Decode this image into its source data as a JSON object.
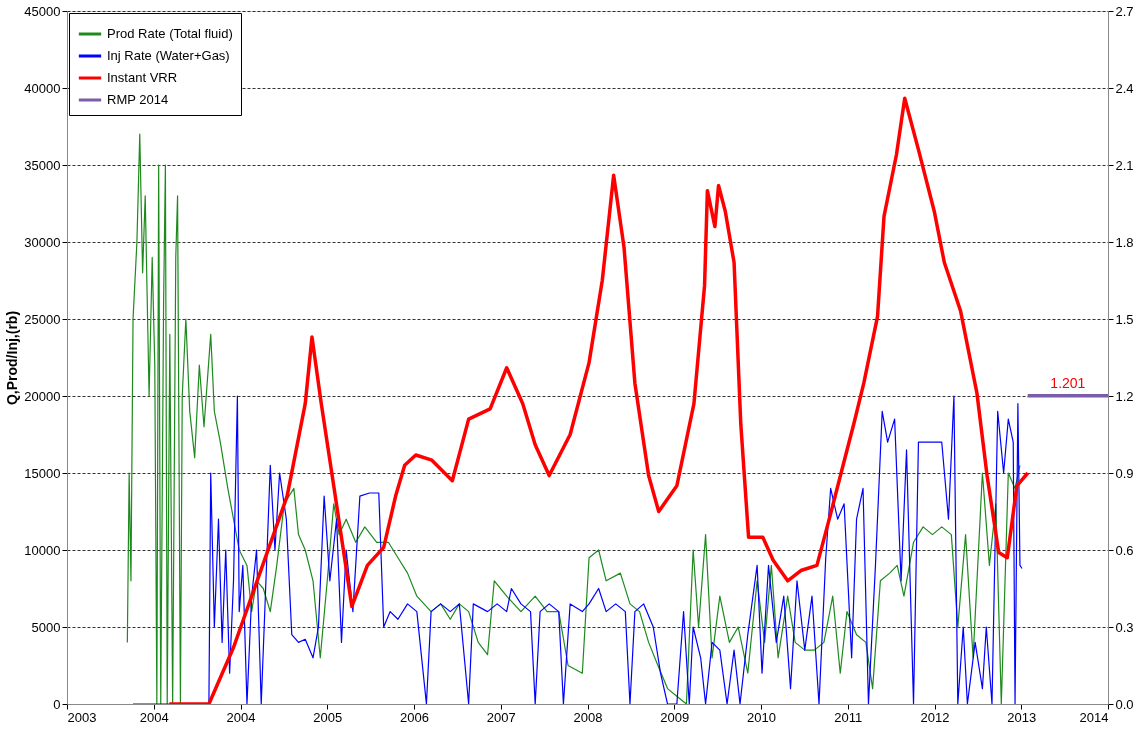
{
  "chart_data": {
    "type": "line",
    "ylabel": "Q,Prod/Inj,(rb)",
    "legend": "top left",
    "grid": "y",
    "marker": "none",
    "line_style": "solid",
    "xlim": [
      "2003-02-06",
      "2014-02-08"
    ],
    "xticks": [
      {
        "value": "2003-02-06",
        "label": "2003"
      },
      {
        "value": "2004-01-07",
        "label": "2004"
      },
      {
        "value": "2004-12-07",
        "label": "2004"
      },
      {
        "value": "2005-11-07",
        "label": "2005"
      },
      {
        "value": "2006-10-08",
        "label": "2006"
      },
      {
        "value": "2007-09-08",
        "label": "2007"
      },
      {
        "value": "2008-08-08",
        "label": "2008"
      },
      {
        "value": "2009-07-09",
        "label": "2009"
      },
      {
        "value": "2010-06-09",
        "label": "2010"
      },
      {
        "value": "2011-05-10",
        "label": "2011"
      },
      {
        "value": "2012-04-09",
        "label": "2012"
      },
      {
        "value": "2013-03-10",
        "label": "2013"
      },
      {
        "value": "2014-02-08",
        "label": "2014"
      }
    ],
    "ylim": [
      0,
      45000
    ],
    "yticks": [
      0,
      5000,
      10000,
      15000,
      20000,
      25000,
      30000,
      35000,
      40000,
      45000
    ],
    "y2lim": [
      0,
      2.7
    ],
    "y2ticks": [
      {
        "value": 0,
        "label": "0.0"
      },
      0.3,
      0.6,
      0.9,
      1.2,
      1.5,
      1.8,
      2.1,
      2.4,
      2.7
    ],
    "annotations": [
      "1.201"
    ],
    "series": [
      {
        "name": "Prod Rate (Total fluid)",
        "color": "#1e8a1e",
        "x": [
          "2003-09-27",
          "2003-10-04",
          "2003-10-11",
          "2003-10-19",
          "2003-11-03",
          "2003-11-14",
          "2003-11-25",
          "2003-12-05",
          "2003-12-20",
          "2004-01-01",
          "2004-01-11",
          "2004-01-19",
          "2004-01-26",
          "2004-02-03",
          "2004-02-14",
          "2004-02-21",
          "2004-02-28",
          "2004-03-09",
          "2004-03-20",
          "2004-04-01",
          "2004-04-08",
          "2004-04-19",
          "2004-04-26",
          "2004-05-10",
          "2004-05-25",
          "2004-06-13",
          "2004-07-01",
          "2004-07-19",
          "2004-08-14",
          "2004-08-28",
          "2004-09-20",
          "2004-10-19",
          "2004-11-10",
          "2004-12-02",
          "2005-01-01",
          "2005-01-19",
          "2005-02-07",
          "2005-03-05",
          "2005-04-01",
          "2005-04-26",
          "2005-05-25",
          "2005-07-01",
          "2005-07-19",
          "2005-08-14",
          "2005-09-13",
          "2005-10-11",
          "2005-11-07",
          "2005-12-02",
          "2005-12-23",
          "2006-01-19",
          "2006-02-25",
          "2006-04-01",
          "2006-05-17",
          "2006-07-01",
          "2006-08-07",
          "2006-09-13",
          "2006-10-19",
          "2006-12-13",
          "2007-01-19",
          "2007-02-25",
          "2007-04-01",
          "2007-05-07",
          "2007-06-13",
          "2007-07-19",
          "2007-08-14",
          "2007-10-01",
          "2007-11-25",
          "2008-01-19",
          "2008-03-05",
          "2008-04-19",
          "2008-05-25",
          "2008-07-19",
          "2008-08-14",
          "2008-09-20",
          "2008-10-19",
          "2008-12-13",
          "2009-01-19",
          "2009-02-25",
          "2009-04-01",
          "2009-05-07",
          "2009-06-13",
          "2009-07-19",
          "2009-08-25",
          "2009-09-20",
          "2009-10-11",
          "2009-11-07",
          "2009-12-02",
          "2010-01-01",
          "2010-02-07",
          "2010-03-13",
          "2010-04-19",
          "2010-05-25",
          "2010-06-23",
          "2010-07-19",
          "2010-08-14",
          "2010-09-20",
          "2010-10-19",
          "2010-11-25",
          "2011-01-01",
          "2011-02-07",
          "2011-03-13",
          "2011-04-11",
          "2011-05-07",
          "2011-06-13",
          "2011-07-19",
          "2011-08-14",
          "2011-09-13",
          "2011-10-19",
          "2011-11-17",
          "2011-12-13",
          "2012-01-19",
          "2012-02-25",
          "2012-04-01",
          "2012-05-07",
          "2012-06-13",
          "2012-07-08",
          "2012-08-07",
          "2012-09-05",
          "2012-10-11",
          "2012-11-07",
          "2012-12-02",
          "2012-12-23",
          "2013-01-19",
          "2013-02-14",
          "2013-03-05"
        ],
        "values": [
          4000,
          15000,
          8000,
          25000,
          30000,
          37000,
          28000,
          33000,
          20000,
          29000,
          22000,
          0,
          35000,
          0,
          26000,
          35000,
          0,
          24000,
          0,
          29000,
          33000,
          0,
          20000,
          25000,
          19000,
          16000,
          22000,
          18000,
          24000,
          19000,
          17000,
          14000,
          12000,
          10000,
          9000,
          6000,
          8000,
          7500,
          6000,
          9000,
          13000,
          14000,
          11000,
          10000,
          8000,
          3000,
          8000,
          13000,
          11000,
          12000,
          10500,
          11500,
          10500,
          10500,
          9500,
          8500,
          7000,
          6000,
          6500,
          5500,
          6500,
          6000,
          4000,
          3200,
          8000,
          7000,
          6000,
          7000,
          6000,
          6000,
          2500,
          2000,
          9500,
          10000,
          8000,
          8500,
          6500,
          6000,
          4000,
          2500,
          1000,
          500,
          0,
          10000,
          5000,
          11000,
          3000,
          7000,
          4000,
          5000,
          2000,
          8000,
          4000,
          9000,
          3000,
          7000,
          4000,
          3500,
          3500,
          4000,
          7000,
          2000,
          6000,
          4500,
          4000,
          1000,
          8000,
          8500,
          9000,
          7000,
          10500,
          11500,
          11000,
          11500,
          11000,
          5000,
          11000,
          3000,
          15000,
          9000,
          13000,
          0,
          15000,
          14000,
          15500
        ]
      },
      {
        "name": "Inj Rate (Water+Gas)",
        "color": "#0000ff",
        "x": [
          "2003-10-19",
          "2004-08-07",
          "2004-08-14",
          "2004-08-28",
          "2004-09-13",
          "2004-09-27",
          "2004-10-11",
          "2004-10-26",
          "2004-11-10",
          "2004-11-25",
          "2004-12-02",
          "2004-12-16",
          "2005-01-01",
          "2005-01-19",
          "2005-02-07",
          "2005-02-25",
          "2005-03-13",
          "2005-04-01",
          "2005-04-19",
          "2005-05-07",
          "2005-06-02",
          "2005-06-23",
          "2005-07-19",
          "2005-08-14",
          "2005-09-13",
          "2005-10-04",
          "2005-10-26",
          "2005-11-17",
          "2005-12-13",
          "2006-01-01",
          "2006-01-19",
          "2006-02-14",
          "2006-03-13",
          "2006-04-19",
          "2006-05-25",
          "2006-06-13",
          "2006-07-08",
          "2006-08-07",
          "2006-09-13",
          "2006-10-19",
          "2006-11-25",
          "2006-12-13",
          "2007-01-19",
          "2007-02-25",
          "2007-04-01",
          "2007-05-07",
          "2007-05-25",
          "2007-07-19",
          "2007-08-25",
          "2007-10-01",
          "2007-10-19",
          "2007-11-25",
          "2008-01-01",
          "2008-01-19",
          "2008-02-07",
          "2008-03-13",
          "2008-04-19",
          "2008-05-07",
          "2008-06-02",
          "2008-07-19",
          "2008-08-14",
          "2008-09-20",
          "2008-10-19",
          "2008-11-25",
          "2009-01-01",
          "2009-01-19",
          "2009-02-07",
          "2009-03-13",
          "2009-04-19",
          "2009-05-17",
          "2009-06-13",
          "2009-07-19",
          "2009-08-14",
          "2009-09-05",
          "2009-09-20",
          "2009-10-19",
          "2009-11-07",
          "2009-12-02",
          "2010-01-01",
          "2010-01-29",
          "2010-02-25",
          "2010-03-20",
          "2010-04-19",
          "2010-05-25",
          "2010-06-13",
          "2010-07-08",
          "2010-08-07",
          "2010-09-05",
          "2010-10-01",
          "2010-10-26",
          "2010-11-25",
          "2010-12-23",
          "2011-01-19",
          "2011-02-14",
          "2011-03-05",
          "2011-04-01",
          "2011-04-26",
          "2011-05-25",
          "2011-06-13",
          "2011-07-08",
          "2011-07-29",
          "2011-08-25",
          "2011-09-20",
          "2011-10-11",
          "2011-11-07",
          "2011-12-02",
          "2011-12-23",
          "2012-01-19",
          "2012-02-07",
          "2012-04-01",
          "2012-05-07",
          "2012-06-02",
          "2012-06-23",
          "2012-07-08",
          "2012-07-29",
          "2012-08-14",
          "2012-09-13",
          "2012-10-11",
          "2012-10-26",
          "2012-11-17",
          "2012-12-09",
          "2013-01-01",
          "2013-01-19",
          "2013-02-07",
          "2013-02-14",
          "2013-02-25",
          "2013-03-05",
          "2013-03-13"
        ],
        "values": [
          0,
          0,
          15000,
          5000,
          12000,
          4000,
          10000,
          2000,
          8000,
          20000,
          6000,
          9000,
          0,
          7000,
          10000,
          0,
          7000,
          15500,
          10000,
          15000,
          12000,
          4500,
          4000,
          4200,
          3000,
          5000,
          13500,
          8000,
          12000,
          4000,
          10000,
          6000,
          13500,
          13700,
          13700,
          5000,
          6000,
          5500,
          6500,
          6000,
          0,
          6000,
          6500,
          6000,
          6500,
          0,
          6500,
          6000,
          6500,
          6000,
          7500,
          6500,
          6000,
          0,
          6000,
          6500,
          6000,
          0,
          6500,
          6000,
          6500,
          7500,
          6000,
          6500,
          6000,
          0,
          6000,
          6500,
          5000,
          2000,
          0,
          0,
          6000,
          0,
          5000,
          3000,
          0,
          4000,
          3500,
          0,
          3500,
          0,
          4500,
          9000,
          2000,
          9000,
          4000,
          7000,
          1000,
          8000,
          3500,
          7000,
          0,
          9500,
          14000,
          12000,
          13000,
          3000,
          12000,
          14000,
          0,
          9000,
          19000,
          17000,
          18500,
          8000,
          16500,
          0,
          17000,
          17000,
          17000,
          12000,
          20000,
          0,
          5000,
          0,
          4000,
          1000,
          5000,
          0,
          19000,
          15000,
          18500,
          17000,
          0,
          19500,
          9000,
          8800
        ]
      },
      {
        "name": "Instant VRR",
        "color": "#ff0000",
        "axis": "y2",
        "x": [
          "2004-03-07",
          "2004-08-07",
          "2004-11-10",
          "2005-03-13",
          "2005-06-05",
          "2005-08-14",
          "2005-09-09",
          "2005-10-15",
          "2005-12-02",
          "2006-02-10",
          "2006-04-11",
          "2006-06-13",
          "2006-07-29",
          "2006-09-02",
          "2006-10-15",
          "2006-12-16",
          "2007-03-05",
          "2007-05-07",
          "2007-07-29",
          "2007-10-01",
          "2007-12-02",
          "2008-01-19",
          "2008-03-13",
          "2008-06-02",
          "2008-08-14",
          "2008-10-04",
          "2008-11-17",
          "2008-12-27",
          "2009-02-07",
          "2009-04-01",
          "2009-05-10",
          "2009-07-19",
          "2009-09-23",
          "2009-11-03",
          "2009-11-14",
          "2009-12-13",
          "2009-12-27",
          "2010-01-22",
          "2010-02-25",
          "2010-03-23",
          "2010-04-22",
          "2010-06-16",
          "2010-07-26",
          "2010-09-20",
          "2010-11-10",
          "2011-01-11",
          "2011-03-02",
          "2011-04-22",
          "2011-06-02",
          "2011-07-11",
          "2011-09-02",
          "2011-09-27",
          "2011-11-14",
          "2011-12-16",
          "2012-02-07",
          "2012-04-08",
          "2012-05-17",
          "2012-07-19",
          "2012-09-20",
          "2012-10-29",
          "2012-12-13",
          "2013-01-15",
          "2013-02-21",
          "2013-04-04"
        ],
        "values": [
          0,
          0,
          0.22,
          0.57,
          0.81,
          1.17,
          1.43,
          1.17,
          0.85,
          0.38,
          0.54,
          0.61,
          0.81,
          0.93,
          0.97,
          0.95,
          0.87,
          1.11,
          1.15,
          1.31,
          1.17,
          1.01,
          0.89,
          1.05,
          1.33,
          1.65,
          2.06,
          1.78,
          1.25,
          0.89,
          0.75,
          0.85,
          1.17,
          1.63,
          2.0,
          1.86,
          2.02,
          1.92,
          1.72,
          1.09,
          0.65,
          0.65,
          0.56,
          0.48,
          0.52,
          0.54,
          0.73,
          0.93,
          1.09,
          1.25,
          1.51,
          1.9,
          2.14,
          2.36,
          2.16,
          1.92,
          1.72,
          1.53,
          1.21,
          0.89,
          0.59,
          0.57,
          0.85,
          0.9
        ]
      },
      {
        "name": "RMP 2014",
        "color": "#7b5ca8",
        "axis": "y2",
        "x": [
          "2013-04-04",
          "2014-02-08"
        ],
        "values": [
          1.201,
          1.201
        ]
      }
    ]
  }
}
